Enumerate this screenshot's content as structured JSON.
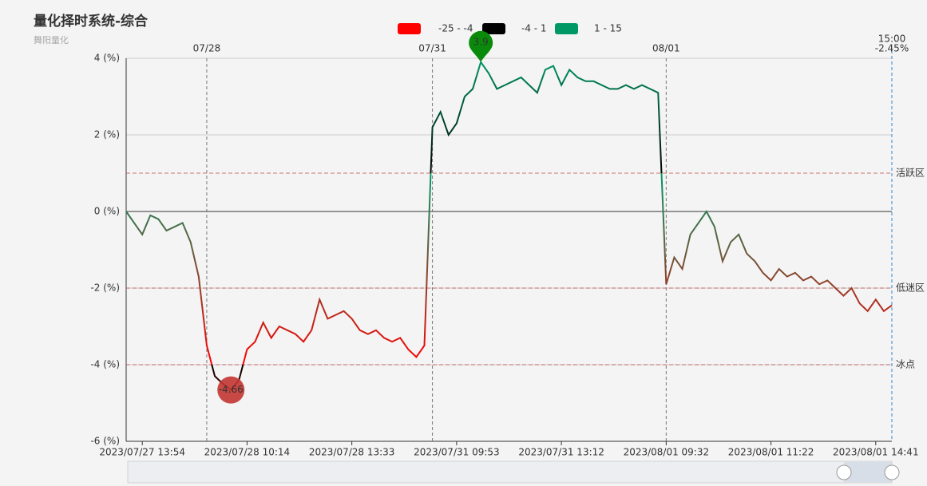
{
  "chart_data": {
    "type": "line",
    "title": "量化择时系统-综合",
    "subtitle": "舞阳量化",
    "ylim": [
      -6,
      4
    ],
    "yticks": [
      {
        "value": -6,
        "label": "-6 (%)"
      },
      {
        "value": -4,
        "label": "-4 (%)"
      },
      {
        "value": -2,
        "label": "-2 (%)"
      },
      {
        "value": 0,
        "label": "0 (%)"
      },
      {
        "value": 2,
        "label": "2 (%)"
      },
      {
        "value": 4,
        "label": "4 (%)"
      }
    ],
    "grid": true,
    "visual_map": [
      {
        "min": -25,
        "max": -4,
        "color": "#ff0000",
        "label": "-25 - -4"
      },
      {
        "min": -4,
        "max": 1,
        "color": "#000000",
        "label": "-4 - 1"
      },
      {
        "min": 1,
        "max": 15,
        "color": "#009966",
        "label": "1 - 15"
      }
    ],
    "mark_lines": [
      {
        "value": 1,
        "label": "活跃区"
      },
      {
        "value": -2,
        "label": "低迷区"
      },
      {
        "value": -4,
        "label": "冰点"
      }
    ],
    "day_lines": [
      {
        "index": 10,
        "label": "07/28"
      },
      {
        "index": 38,
        "label": "07/31"
      },
      {
        "index": 67,
        "label": "08/01"
      }
    ],
    "end_label": {
      "time": "15:00",
      "value_label": "-2.45%"
    },
    "categories": [
      null,
      null,
      "2023/07/27 13:54",
      null,
      null,
      null,
      null,
      null,
      null,
      null,
      null,
      null,
      null,
      null,
      null,
      "2023/07/28 10:14",
      null,
      null,
      null,
      null,
      null,
      null,
      null,
      null,
      null,
      null,
      null,
      null,
      "2023/07/28 13:33",
      null,
      null,
      null,
      null,
      null,
      null,
      null,
      null,
      null,
      null,
      null,
      null,
      "2023/07/31 09:53",
      null,
      null,
      null,
      null,
      null,
      null,
      null,
      null,
      null,
      null,
      null,
      null,
      "2023/07/31 13:12",
      null,
      null,
      null,
      null,
      null,
      null,
      null,
      null,
      null,
      null,
      null,
      null,
      "2023/08/01 09:32",
      null,
      null,
      null,
      null,
      null,
      null,
      null,
      null,
      null,
      null,
      null,
      null,
      "2023/08/01 11:22",
      null,
      null,
      null,
      null,
      null,
      null,
      null,
      null,
      null,
      null,
      null,
      null,
      "2023/08/01 14:41",
      null,
      null
    ],
    "values": [
      0,
      -0.3,
      -0.6,
      -0.1,
      -0.2,
      -0.5,
      -0.4,
      -0.3,
      -0.8,
      -1.7,
      -3.5,
      -4.3,
      -4.5,
      -4.66,
      -4.4,
      -3.6,
      -3.4,
      -2.9,
      -3.3,
      -3.0,
      -3.1,
      -3.2,
      -3.4,
      -3.1,
      -2.3,
      -2.8,
      -2.7,
      -2.6,
      -2.8,
      -3.1,
      -3.2,
      -3.1,
      -3.3,
      -3.4,
      -3.3,
      -3.6,
      -3.8,
      -3.5,
      2.2,
      2.6,
      2.0,
      2.3,
      3.0,
      3.2,
      3.9,
      3.6,
      3.2,
      3.3,
      3.4,
      3.5,
      3.3,
      3.1,
      3.7,
      3.8,
      3.3,
      3.7,
      3.5,
      3.4,
      3.4,
      3.3,
      3.2,
      3.2,
      3.3,
      3.2,
      3.3,
      3.2,
      3.1,
      -1.9,
      -1.2,
      -1.5,
      -0.6,
      -0.3,
      0.0,
      -0.4,
      -1.3,
      -0.8,
      -0.6,
      -1.1,
      -1.3,
      -1.6,
      -1.8,
      -1.5,
      -1.7,
      -1.6,
      -1.8,
      -1.7,
      -1.9,
      -1.8,
      -2.0,
      -2.2,
      -2.0,
      -2.4,
      -2.6,
      -2.3,
      -2.6,
      -2.45
    ]
  }
}
